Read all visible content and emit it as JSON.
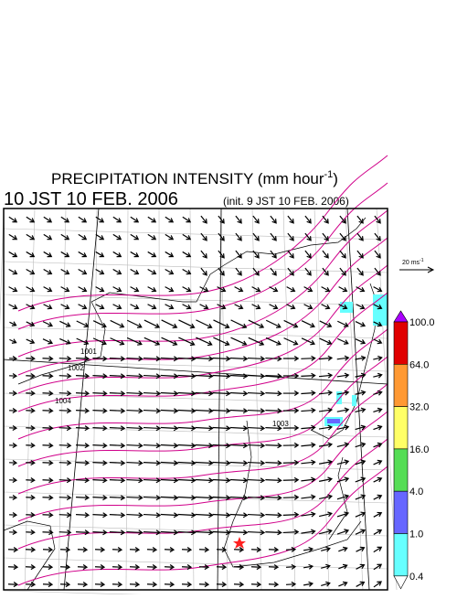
{
  "header": {
    "title": "PRECIPITATION INTENSITY (mm hour",
    "title_superscript": "-1",
    "title_suffix": ")",
    "valid_time": "10 JST 10 FEB. 2006",
    "init_time": "(init. 9 JST 10 FEB. 2006)"
  },
  "reference_arrow": {
    "label": "20 ms",
    "label_superscript": "-1"
  },
  "contour_labels": [
    "1001",
    "1002",
    "1004",
    "1003"
  ],
  "colorbar": {
    "labels": [
      "100.0",
      "64.0",
      "32.0",
      "16.0",
      "4.0",
      "1.0",
      "0.4"
    ],
    "colors": [
      "#e00000",
      "#ff9933",
      "#ffff66",
      "#55dd55",
      "#6666ff",
      "#66ffff"
    ],
    "over_color": "#aa00ff",
    "under_color": "#ffffff"
  }
}
